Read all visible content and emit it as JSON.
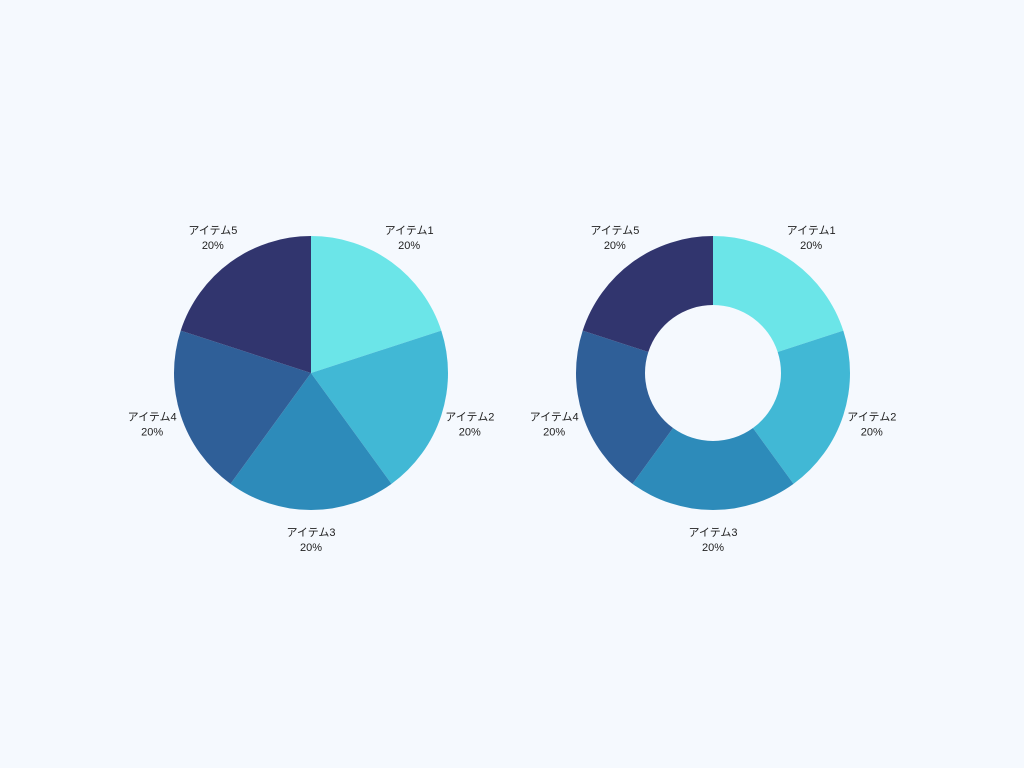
{
  "chart_data": [
    {
      "type": "pie",
      "categories": [
        "アイテム1",
        "アイテム2",
        "アイテム3",
        "アイテム4",
        "アイテム5"
      ],
      "values": [
        20,
        20,
        20,
        20,
        20
      ],
      "value_labels": [
        "20%",
        "20%",
        "20%",
        "20%",
        "20%"
      ],
      "colors": [
        "#6be5e8",
        "#41b8d5",
        "#2d8bba",
        "#2f5f98",
        "#31356e"
      ]
    },
    {
      "type": "donut",
      "categories": [
        "アイテム1",
        "アイテム2",
        "アイテム3",
        "アイテム4",
        "アイテム5"
      ],
      "values": [
        20,
        20,
        20,
        20,
        20
      ],
      "value_labels": [
        "20%",
        "20%",
        "20%",
        "20%",
        "20%"
      ],
      "colors": [
        "#6be5e8",
        "#41b8d5",
        "#2d8bba",
        "#2f5f98",
        "#31356e"
      ]
    }
  ]
}
